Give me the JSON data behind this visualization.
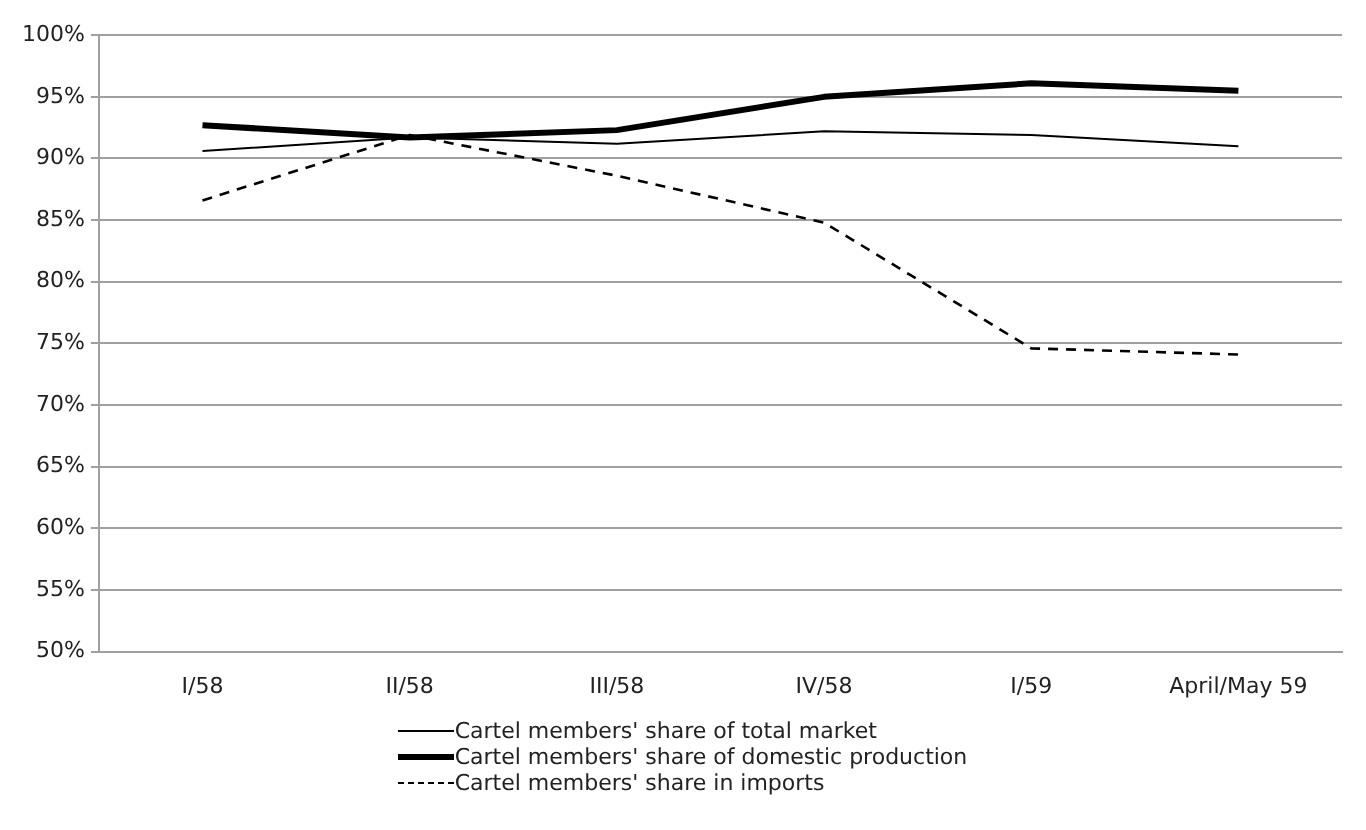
{
  "chart_data": {
    "type": "line",
    "categories": [
      "I/58",
      "II/58",
      "III/58",
      "IV/58",
      "I/59",
      "April/May 59"
    ],
    "series": [
      {
        "name": "Cartel members' share of total market",
        "color": "#000000",
        "line_style": "solid",
        "values": [
          90.6,
          91.7,
          91.2,
          92.2,
          91.9,
          91.0
        ]
      },
      {
        "name": "Cartel members' share of domestic production",
        "color": "#000000",
        "line_style": "solid",
        "values": [
          92.7,
          91.7,
          92.3,
          95.0,
          96.1,
          95.5
        ]
      },
      {
        "name": "Cartel members' share in imports",
        "color": "#000000",
        "line_style": "dashed",
        "values": [
          86.6,
          91.9,
          88.6,
          84.8,
          74.6,
          74.1
        ]
      }
    ],
    "ylim": [
      50,
      100
    ],
    "yticks": [
      {
        "value": 50,
        "label": "50%"
      },
      {
        "value": 55,
        "label": "55%"
      },
      {
        "value": 60,
        "label": "60%"
      },
      {
        "value": 65,
        "label": "65%"
      },
      {
        "value": 70,
        "label": "70%"
      },
      {
        "value": 75,
        "label": "75%"
      },
      {
        "value": 80,
        "label": "80%"
      },
      {
        "value": 85,
        "label": "85%"
      },
      {
        "value": 90,
        "label": "90%"
      },
      {
        "value": 95,
        "label": "95%"
      },
      {
        "value": 100,
        "label": "100%"
      }
    ],
    "grid": "y",
    "legend": "bottom",
    "marker": "none"
  }
}
